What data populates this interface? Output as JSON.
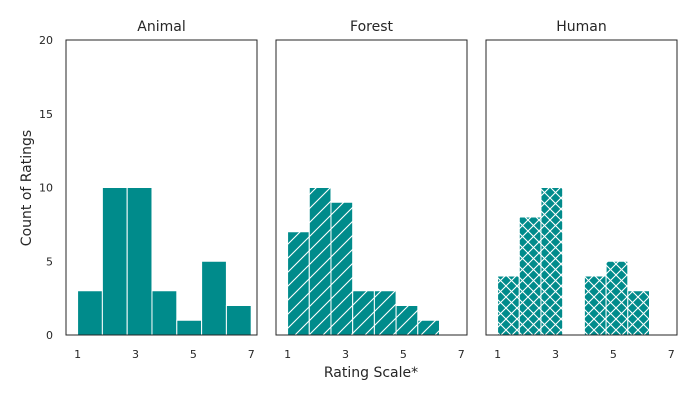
{
  "chart_data": {
    "type": "bar",
    "xlabel": "Rating Scale*",
    "ylabel": "Count of Ratings",
    "xlim": [
      0.6,
      7.2
    ],
    "ylim": [
      0,
      20
    ],
    "xticks": [
      "1",
      "3",
      "5",
      "7"
    ],
    "yticks": [
      "0",
      "5",
      "10",
      "15",
      "20"
    ],
    "bar_color": "#008b8b",
    "grid": false,
    "panels": [
      {
        "title": "Animal",
        "hatch": "none",
        "show_y_ticks": true,
        "bins": [
          {
            "start": 1.0,
            "end": 1.857,
            "count": 3
          },
          {
            "start": 1.857,
            "end": 2.714,
            "count": 10
          },
          {
            "start": 2.714,
            "end": 3.571,
            "count": 10
          },
          {
            "start": 3.571,
            "end": 4.429,
            "count": 3
          },
          {
            "start": 4.429,
            "end": 5.286,
            "count": 1
          },
          {
            "start": 5.286,
            "end": 6.143,
            "count": 5
          },
          {
            "start": 6.143,
            "end": 7.0,
            "count": 2
          }
        ]
      },
      {
        "title": "Forest",
        "hatch": "diagonal",
        "show_y_ticks": false,
        "bins": [
          {
            "start": 1.0,
            "end": 1.75,
            "count": 7
          },
          {
            "start": 1.75,
            "end": 2.5,
            "count": 10
          },
          {
            "start": 2.5,
            "end": 3.25,
            "count": 9
          },
          {
            "start": 3.25,
            "end": 4.0,
            "count": 3
          },
          {
            "start": 4.0,
            "end": 4.75,
            "count": 3
          },
          {
            "start": 4.75,
            "end": 5.5,
            "count": 2
          },
          {
            "start": 5.5,
            "end": 6.25,
            "count": 1
          }
        ]
      },
      {
        "title": "Human",
        "hatch": "cross",
        "show_y_ticks": false,
        "bins": [
          {
            "start": 1.0,
            "end": 1.75,
            "count": 4
          },
          {
            "start": 1.75,
            "end": 2.5,
            "count": 8
          },
          {
            "start": 2.5,
            "end": 3.25,
            "count": 10
          },
          {
            "start": 3.25,
            "end": 4.0,
            "count": 0
          },
          {
            "start": 4.0,
            "end": 4.75,
            "count": 4
          },
          {
            "start": 4.75,
            "end": 5.5,
            "count": 5
          },
          {
            "start": 5.5,
            "end": 6.25,
            "count": 3
          }
        ]
      }
    ]
  }
}
